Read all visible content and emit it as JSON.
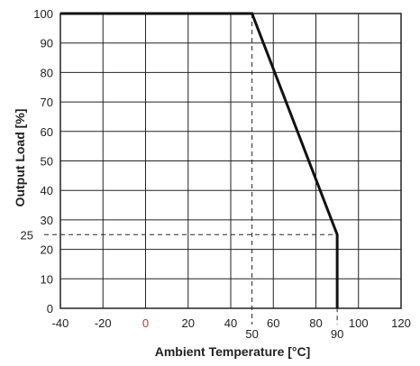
{
  "chart_data": {
    "type": "line",
    "xlabel": "Ambient Temperature [°C]",
    "ylabel": "Output Load [%]",
    "xlim": [
      -40,
      120
    ],
    "ylim": [
      0,
      100
    ],
    "x_ticks": [
      -40,
      -20,
      0,
      20,
      40,
      60,
      80,
      100,
      120
    ],
    "y_ticks": [
      0,
      10,
      20,
      30,
      40,
      50,
      60,
      70,
      80,
      90,
      100
    ],
    "grid": true,
    "highlighted_ticks": {
      "x": [
        {
          "value": 50,
          "label": "50"
        },
        {
          "value": 90,
          "label": "90"
        }
      ],
      "y": [
        {
          "value": 25,
          "label": "25"
        }
      ]
    },
    "colors": {
      "line": "#111111",
      "grid": "#222222",
      "guide": "#222222",
      "x_tick_zero": "#c0392b"
    },
    "series": [
      {
        "x": [
          -40,
          50,
          90,
          90
        ],
        "y": [
          100,
          100,
          25,
          0
        ]
      }
    ],
    "guides": [
      {
        "type": "vertical",
        "x": 50,
        "y_from": 0,
        "y_to": 100
      },
      {
        "type": "vertical",
        "x": 90,
        "y_from": 0,
        "y_to": 25
      },
      {
        "type": "horizontal",
        "y": 25,
        "x_from": -40,
        "x_to": 90
      }
    ]
  }
}
